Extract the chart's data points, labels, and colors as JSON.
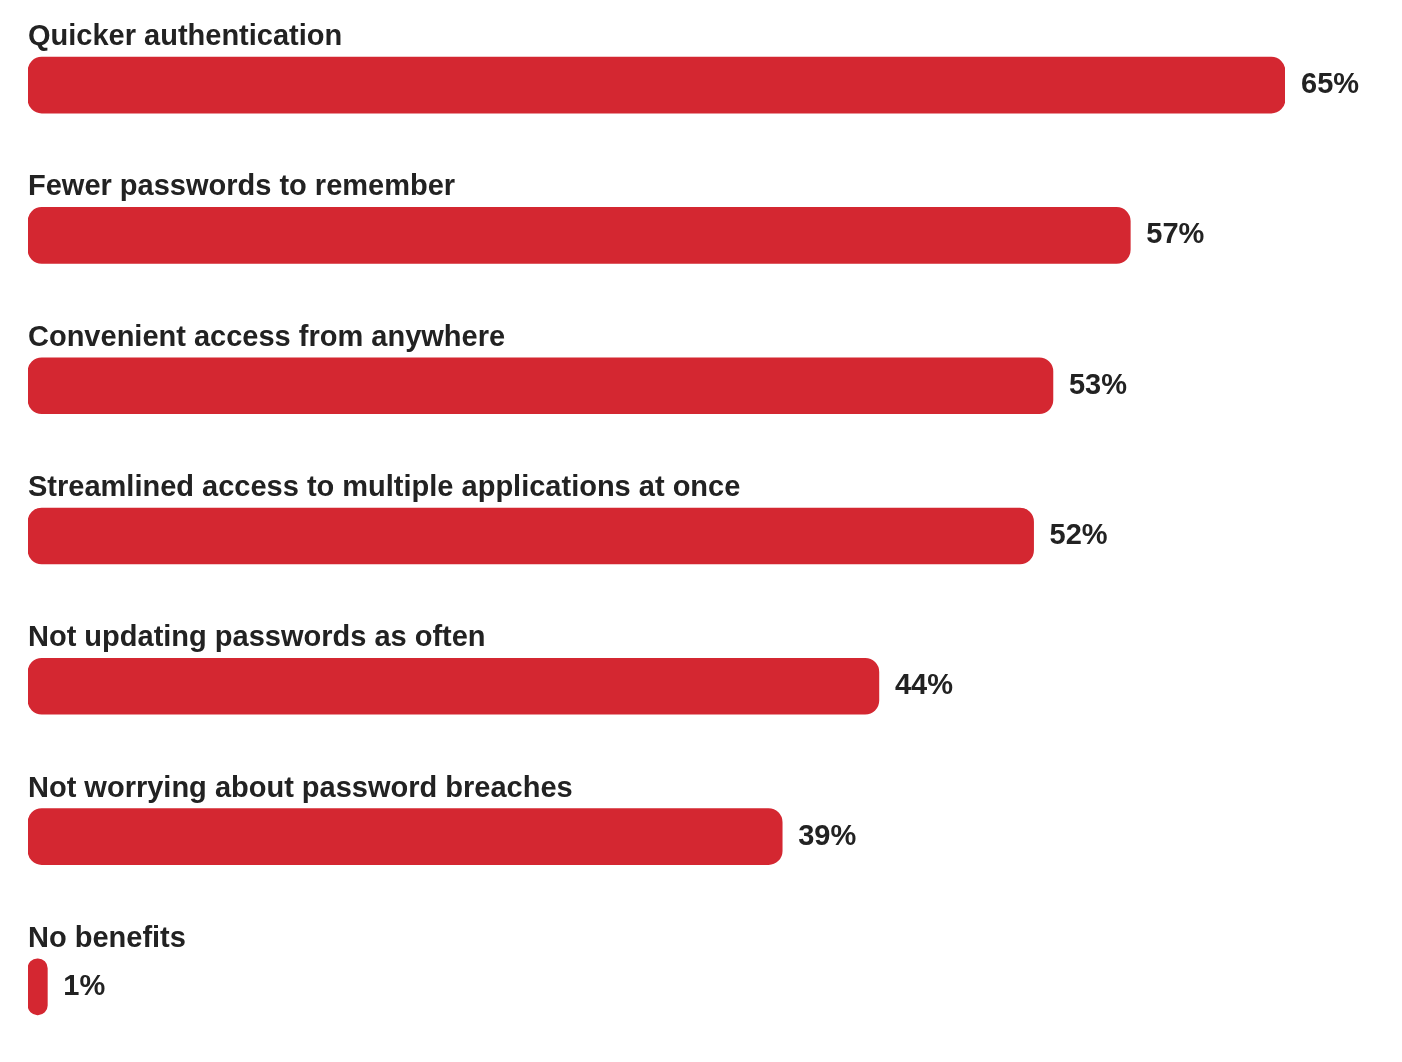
{
  "chart_data": {
    "type": "bar",
    "orientation": "horizontal",
    "categories": [
      "Quicker authentication",
      "Fewer passwords to remember",
      "Convenient access from anywhere",
      "Streamlined access to multiple applications at once",
      "Not updating passwords as often",
      "Not worrying about password breaches",
      "No benefits"
    ],
    "values": [
      65,
      57,
      53,
      52,
      44,
      39,
      1
    ],
    "value_labels": [
      "65%",
      "57%",
      "53%",
      "52%",
      "44%",
      "39%",
      "1%"
    ],
    "color": "#d42731"
  }
}
